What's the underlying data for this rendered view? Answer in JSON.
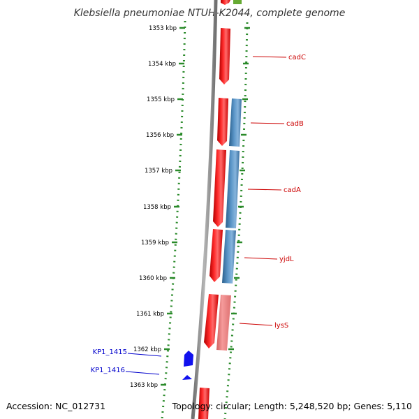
{
  "title": "Klebsiella pneumoniae NTUH-K2044, complete genome",
  "accession": "Accession: NC_012731",
  "topology": "Topology: circular; Length: 5,248,520 bp; Genes: 5,110",
  "colors": {
    "backbone": "#8a8a8a",
    "forward_gene": "#ee1111",
    "reverse_gene": "#4a86b8",
    "light_gene": "#ee8080",
    "blue_gene": "#1111ee",
    "green_gene": "#66aa33",
    "ticks": "#2a8a2a",
    "label_red": "#cc0000",
    "label_blue": "#0000cc"
  },
  "ticks": [
    "1353 kbp",
    "1354 kbp",
    "1355 kbp",
    "1356 kbp",
    "1357 kbp",
    "1358 kbp",
    "1359 kbp",
    "1360 kbp",
    "1361 kbp",
    "1362 kbp",
    "1363 kbp"
  ],
  "gene_labels": [
    {
      "name": "cadC",
      "color": "red"
    },
    {
      "name": "cadB",
      "color": "red"
    },
    {
      "name": "cadA",
      "color": "red"
    },
    {
      "name": "yjdL",
      "color": "red"
    },
    {
      "name": "lysS",
      "color": "red"
    },
    {
      "name": "KP1_1415",
      "color": "blue"
    },
    {
      "name": "KP1_1416",
      "color": "blue"
    }
  ]
}
